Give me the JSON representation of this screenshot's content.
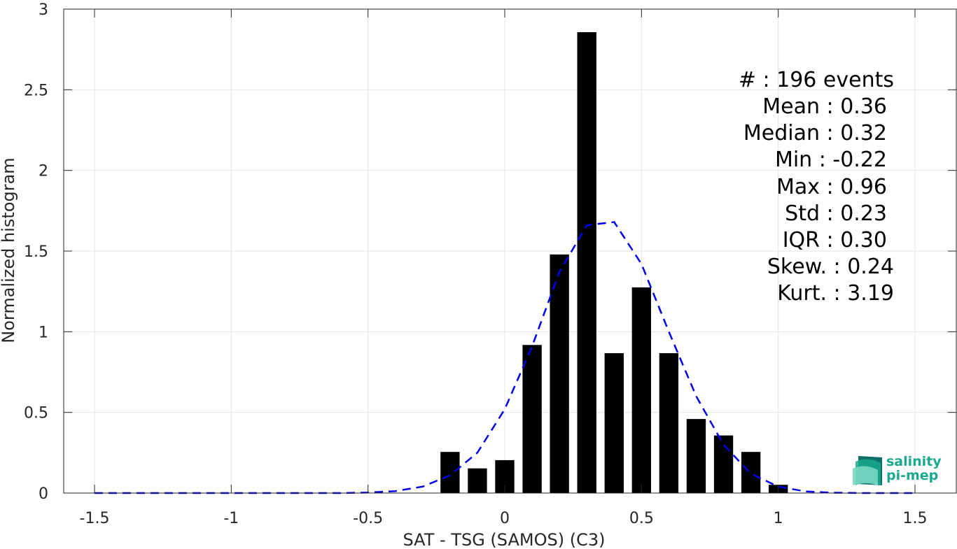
{
  "chart_data": {
    "type": "bar",
    "xlabel": "SAT - TSG (SAMOS) (C3)",
    "ylabel": "Normalized histogram",
    "xlim": [
      -1.5,
      1.5
    ],
    "ylim": [
      0,
      3
    ],
    "xticks": [
      "-1.5",
      "-1",
      "-0.5",
      "0",
      "0.5",
      "1",
      "1.5"
    ],
    "yticks": [
      "0",
      "0.5",
      "1",
      "1.5",
      "2",
      "2.5",
      "3"
    ],
    "grid": true,
    "bar_color": "#000000",
    "curve_color": "#0000ee",
    "bars": {
      "x": [
        -0.2,
        -0.1,
        0.0,
        0.1,
        0.2,
        0.3,
        0.4,
        0.5,
        0.6,
        0.7,
        0.8,
        0.9,
        1.0
      ],
      "values": [
        0.255,
        0.153,
        0.204,
        0.918,
        1.479,
        2.857,
        0.867,
        1.275,
        0.867,
        0.459,
        0.357,
        0.255,
        0.051
      ],
      "width": 0.07
    },
    "fit_curve": {
      "style": "dashed",
      "x": [
        -1.5,
        -1.4,
        -1.3,
        -1.2,
        -1.1,
        -1.0,
        -0.9,
        -0.8,
        -0.7,
        -0.6,
        -0.5,
        -0.4,
        -0.3,
        -0.2,
        -0.1,
        0.0,
        0.1,
        0.2,
        0.3,
        0.4,
        0.5,
        0.6,
        0.7,
        0.8,
        0.9,
        1.0,
        1.1,
        1.2,
        1.3,
        1.4,
        1.5
      ],
      "y": [
        0,
        0,
        0,
        0,
        0,
        0,
        0,
        0,
        0,
        0,
        0.003,
        0.012,
        0.04,
        0.11,
        0.25,
        0.52,
        0.91,
        1.37,
        1.66,
        1.68,
        1.42,
        1.0,
        0.6,
        0.3,
        0.12,
        0.04,
        0.01,
        0.002,
        0,
        0,
        0
      ]
    },
    "stats": [
      {
        "label": "#  : 196 events"
      },
      {
        "label": "Mean : 0.36"
      },
      {
        "label": "Median : 0.32"
      },
      {
        "label": "Min : -0.22"
      },
      {
        "label": "Max : 0.96"
      },
      {
        "label": "Std : 0.23"
      },
      {
        "label": "IQR : 0.30"
      },
      {
        "label": "Skew. : 0.24"
      },
      {
        "label": "Kurt. : 3.19"
      }
    ]
  },
  "logo": {
    "line1": "salinity",
    "line2": "pi-mep",
    "icon": "salinity-wave-icon",
    "color_primary": "#1aa88e",
    "color_dark": "#0f6f66"
  }
}
